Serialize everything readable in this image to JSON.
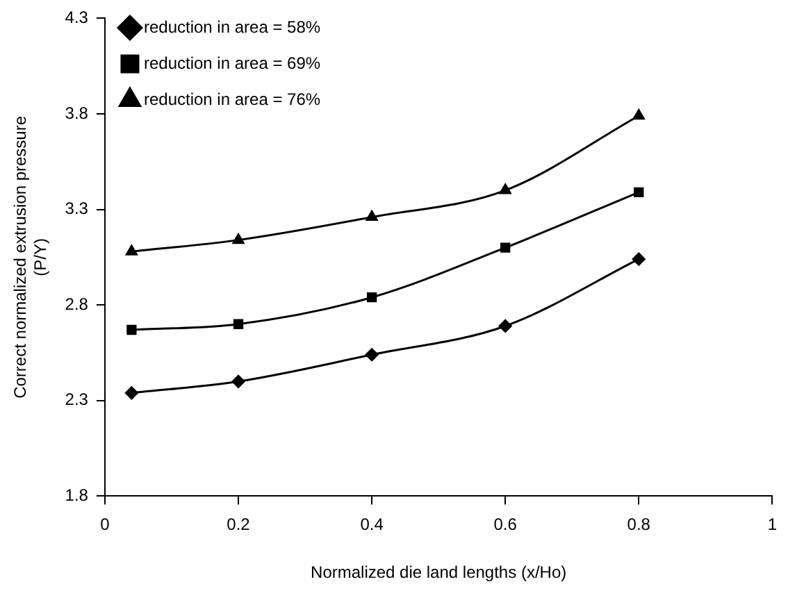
{
  "chart_data": {
    "type": "line",
    "xlabel": "Normalized die land lengths (x/Ho)",
    "ylabel": "Correct normalized extrusion pressure\n(P/Y)",
    "x": [
      0.04,
      0.2,
      0.4,
      0.6,
      0.8
    ],
    "xlim": [
      0,
      1
    ],
    "xticks": [
      0,
      0.2,
      0.4,
      0.6,
      0.8,
      1
    ],
    "ylim": [
      1.8,
      4.3
    ],
    "yticks": [
      1.8,
      2.3,
      2.8,
      3.3,
      3.8,
      4.3
    ],
    "grid": false,
    "legend": "top left",
    "line_style": "solid",
    "series": [
      {
        "name": "reduction in area = 58%",
        "color": "#000000",
        "marker": "diamond",
        "values": [
          2.34,
          2.4,
          2.54,
          2.69,
          3.04
        ]
      },
      {
        "name": "reduction in area = 69%",
        "color": "#000000",
        "marker": "square",
        "values": [
          2.67,
          2.7,
          2.84,
          3.1,
          3.39
        ]
      },
      {
        "name": "reduction in area = 76%",
        "color": "#000000",
        "marker": "triangle",
        "values": [
          3.08,
          3.14,
          3.26,
          3.4,
          3.79
        ]
      }
    ]
  }
}
